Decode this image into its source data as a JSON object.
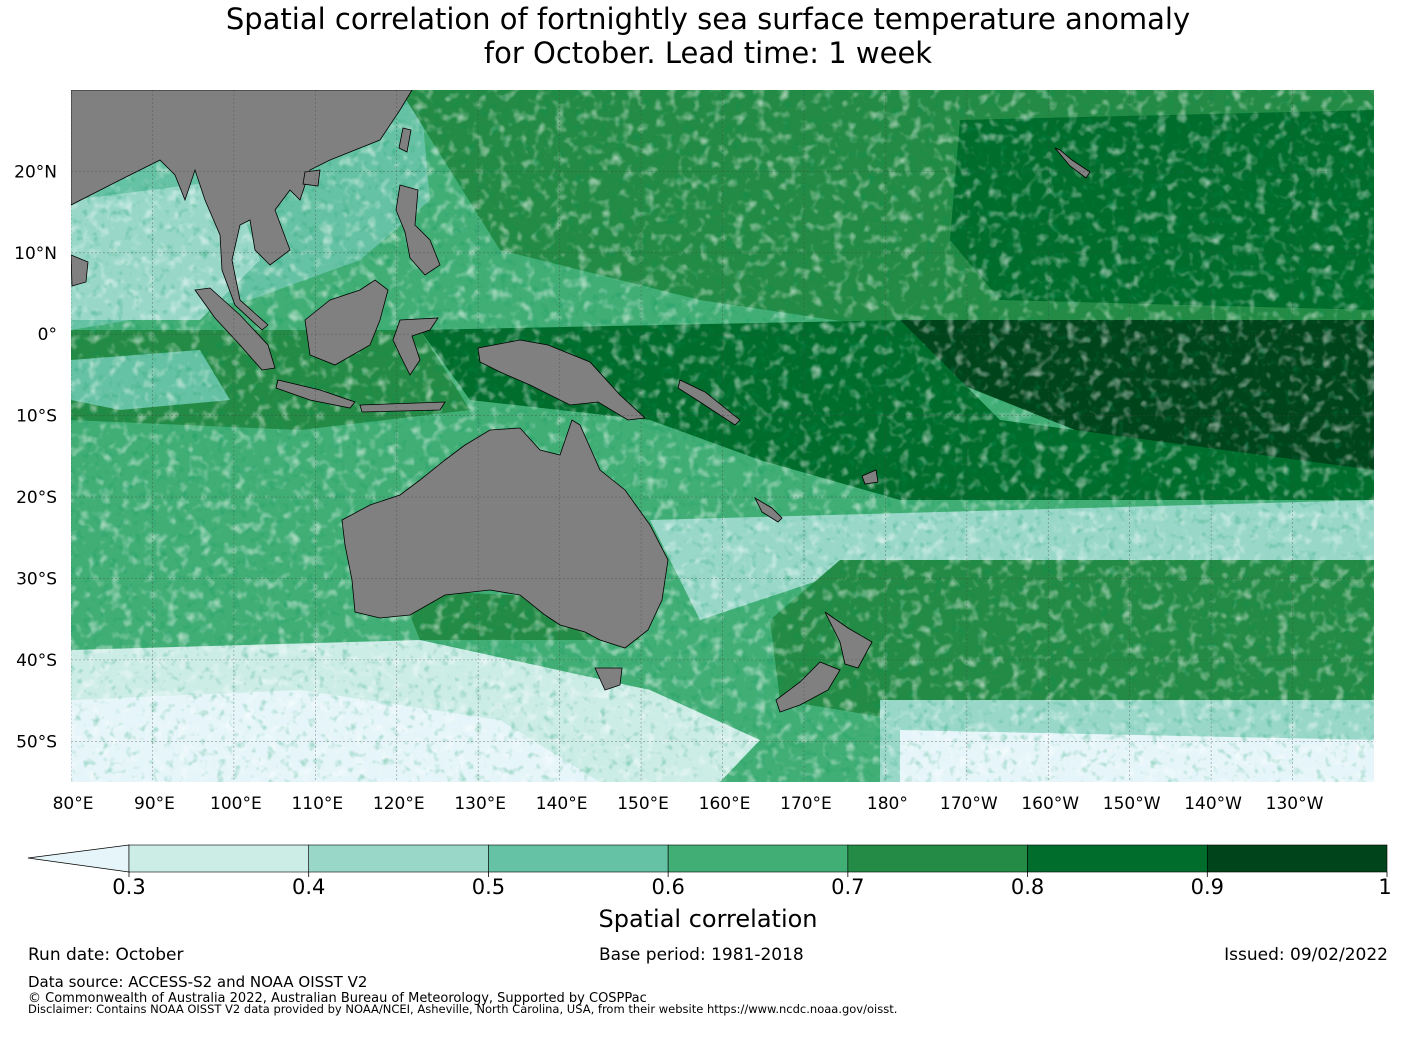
{
  "title": {
    "line1": "Spatial correlation of fortnightly sea surface temperature anomaly",
    "line2": "for October. Lead time: 1 week"
  },
  "map": {
    "lat_labels": [
      "20°N",
      "10°N",
      "0°",
      "10°S",
      "20°S",
      "30°S",
      "40°S",
      "50°S"
    ],
    "lat_values": [
      20,
      10,
      0,
      -10,
      -20,
      -30,
      -40,
      -50
    ],
    "lon_labels": [
      "80°E",
      "90°E",
      "100°E",
      "110°E",
      "120°E",
      "130°E",
      "140°E",
      "150°E",
      "160°E",
      "170°E",
      "180°",
      "170°W",
      "160°W",
      "150°W",
      "140°W",
      "130°W"
    ],
    "lon_values": [
      80,
      90,
      100,
      110,
      120,
      130,
      140,
      150,
      160,
      170,
      180,
      190,
      200,
      210,
      220,
      230
    ],
    "lon_range": [
      80,
      240
    ],
    "lat_range": [
      -55,
      30
    ],
    "land_color": "#808080",
    "grid": true
  },
  "colorbar": {
    "label": "Spatial correlation",
    "ticks": [
      "0.3",
      "0.4",
      "0.5",
      "0.6",
      "0.7",
      "0.8",
      "0.9",
      "1"
    ],
    "tick_values": [
      0.3,
      0.4,
      0.5,
      0.6,
      0.7,
      0.8,
      0.9,
      1.0
    ],
    "colors": [
      "#e5f5f9",
      "#ccece6",
      "#99d8c9",
      "#66c2a4",
      "#41ae76",
      "#238b45",
      "#006d2c",
      "#00441b"
    ],
    "extend": "min"
  },
  "footer": {
    "run_date": "Run date: October",
    "base_period": "Base period: 1981-2018",
    "issued": "Issued: 09/02/2022",
    "data_source": "Data source: ACCESS-S2 and NOAA OISST V2",
    "copyright": "© Commonwealth of Australia 2022, Australian Bureau of Meteorology, Supported by COSPPac",
    "disclaimer": "Disclaimer: Contains NOAA OISST V2 data provided by NOAA/NCEI, Asheville, North Carolina, USA, from their website https://www.ncdc.noaa.gov/oisst."
  }
}
